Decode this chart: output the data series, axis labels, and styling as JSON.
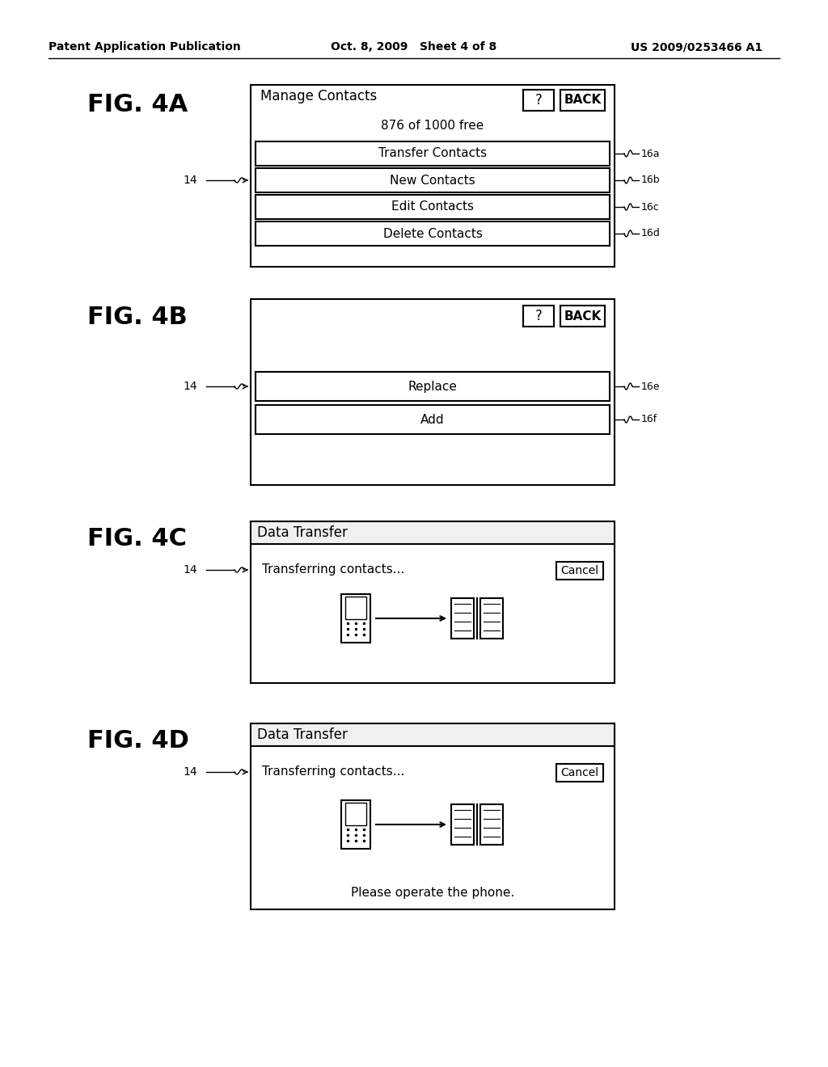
{
  "bg_color": "#ffffff",
  "header_left": "Patent Application Publication",
  "header_center": "Oct. 8, 2009   Sheet 4 of 8",
  "header_right": "US 2009/0253466 A1",
  "fig4a_label": "FIG. 4A",
  "fig4b_label": "FIG. 4B",
  "fig4c_label": "FIG. 4C",
  "fig4d_label": "FIG. 4D",
  "fig4a_title": "Manage Contacts",
  "fig4a_free_text": "876 of 1000 free",
  "fig4a_buttons": [
    "Transfer Contacts",
    "New Contacts",
    "Edit Contacts",
    "Delete Contacts"
  ],
  "fig4a_labels": [
    "16a",
    "16b",
    "16c",
    "16d"
  ],
  "fig4b_buttons": [
    "Replace",
    "Add"
  ],
  "fig4b_labels": [
    "16e",
    "16f"
  ],
  "fig4c_title": "Data Transfer",
  "fig4c_transfer_text": "Transferring contacts...",
  "fig4d_title": "Data Transfer",
  "fig4d_transfer_text": "Transferring contacts...",
  "fig4d_bottom_text": "Please operate the phone.",
  "label_14": "14",
  "cancel_text": "Cancel",
  "question_text": "?",
  "back_text": "BACK"
}
